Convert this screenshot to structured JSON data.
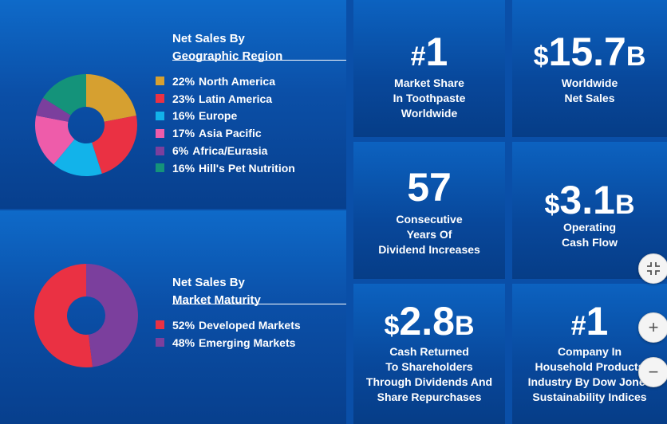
{
  "colors": {
    "north_america": "#d6a030",
    "latin_america": "#ea3143",
    "europe": "#12b3ea",
    "asia_pacific": "#ee5caa",
    "africa_eurasia": "#7b3f9d",
    "hills_pet": "#14937a",
    "developed": "#ea3143",
    "emerging": "#7b3f9d"
  },
  "chart_data": [
    {
      "type": "pie",
      "title": "Net Sales By Geographic Region",
      "title_line1": "Net Sales By",
      "title_line2": "Geographic Region",
      "categories": [
        "North America",
        "Latin America",
        "Europe",
        "Asia Pacific",
        "Africa/Eurasia",
        "Hill's Pet Nutrition"
      ],
      "values": [
        22,
        23,
        16,
        17,
        6,
        16
      ],
      "value_labels": [
        "22%",
        "23%",
        "16%",
        "17%",
        "6%",
        "16%"
      ],
      "unit": "%",
      "style": "donut"
    },
    {
      "type": "pie",
      "title": "Net Sales By Market Maturity",
      "title_line1": "Net Sales By",
      "title_line2": "Market Maturity",
      "categories": [
        "Developed Markets",
        "Emerging Markets"
      ],
      "values": [
        52,
        48
      ],
      "value_labels": [
        "52%",
        "48%"
      ],
      "unit": "%",
      "style": "donut"
    }
  ],
  "stats": [
    {
      "prefix": "#",
      "number": "1",
      "suffix": "",
      "lines": [
        "Market Share",
        "In Toothpaste",
        "Worldwide"
      ]
    },
    {
      "prefix": "$",
      "number": "15.7",
      "suffix": "B",
      "lines": [
        "Worldwide",
        "Net Sales"
      ]
    },
    {
      "prefix": "",
      "number": "57",
      "suffix": "",
      "lines": [
        "Consecutive",
        "Years Of",
        "Dividend Increases"
      ]
    },
    {
      "prefix": "$",
      "number": "3.1",
      "suffix": "B",
      "lines": [
        "Operating",
        "Cash Flow"
      ]
    },
    {
      "prefix": "$",
      "number": "2.8",
      "suffix": "B",
      "lines": [
        "Cash Returned",
        "To Shareholders",
        "Through Dividends And",
        "Share Repurchases"
      ]
    },
    {
      "prefix": "#",
      "number": "1",
      "suffix": "",
      "lines": [
        "Company In",
        "Household Products",
        "Industry By Dow Jones",
        "Sustainability Indices"
      ]
    }
  ],
  "controls": {
    "collapse_icon": "collapse-icon",
    "zoom_in_icon": "plus-icon",
    "zoom_out_icon": "minus-icon",
    "plus_glyph": "+",
    "minus_glyph": "−"
  }
}
